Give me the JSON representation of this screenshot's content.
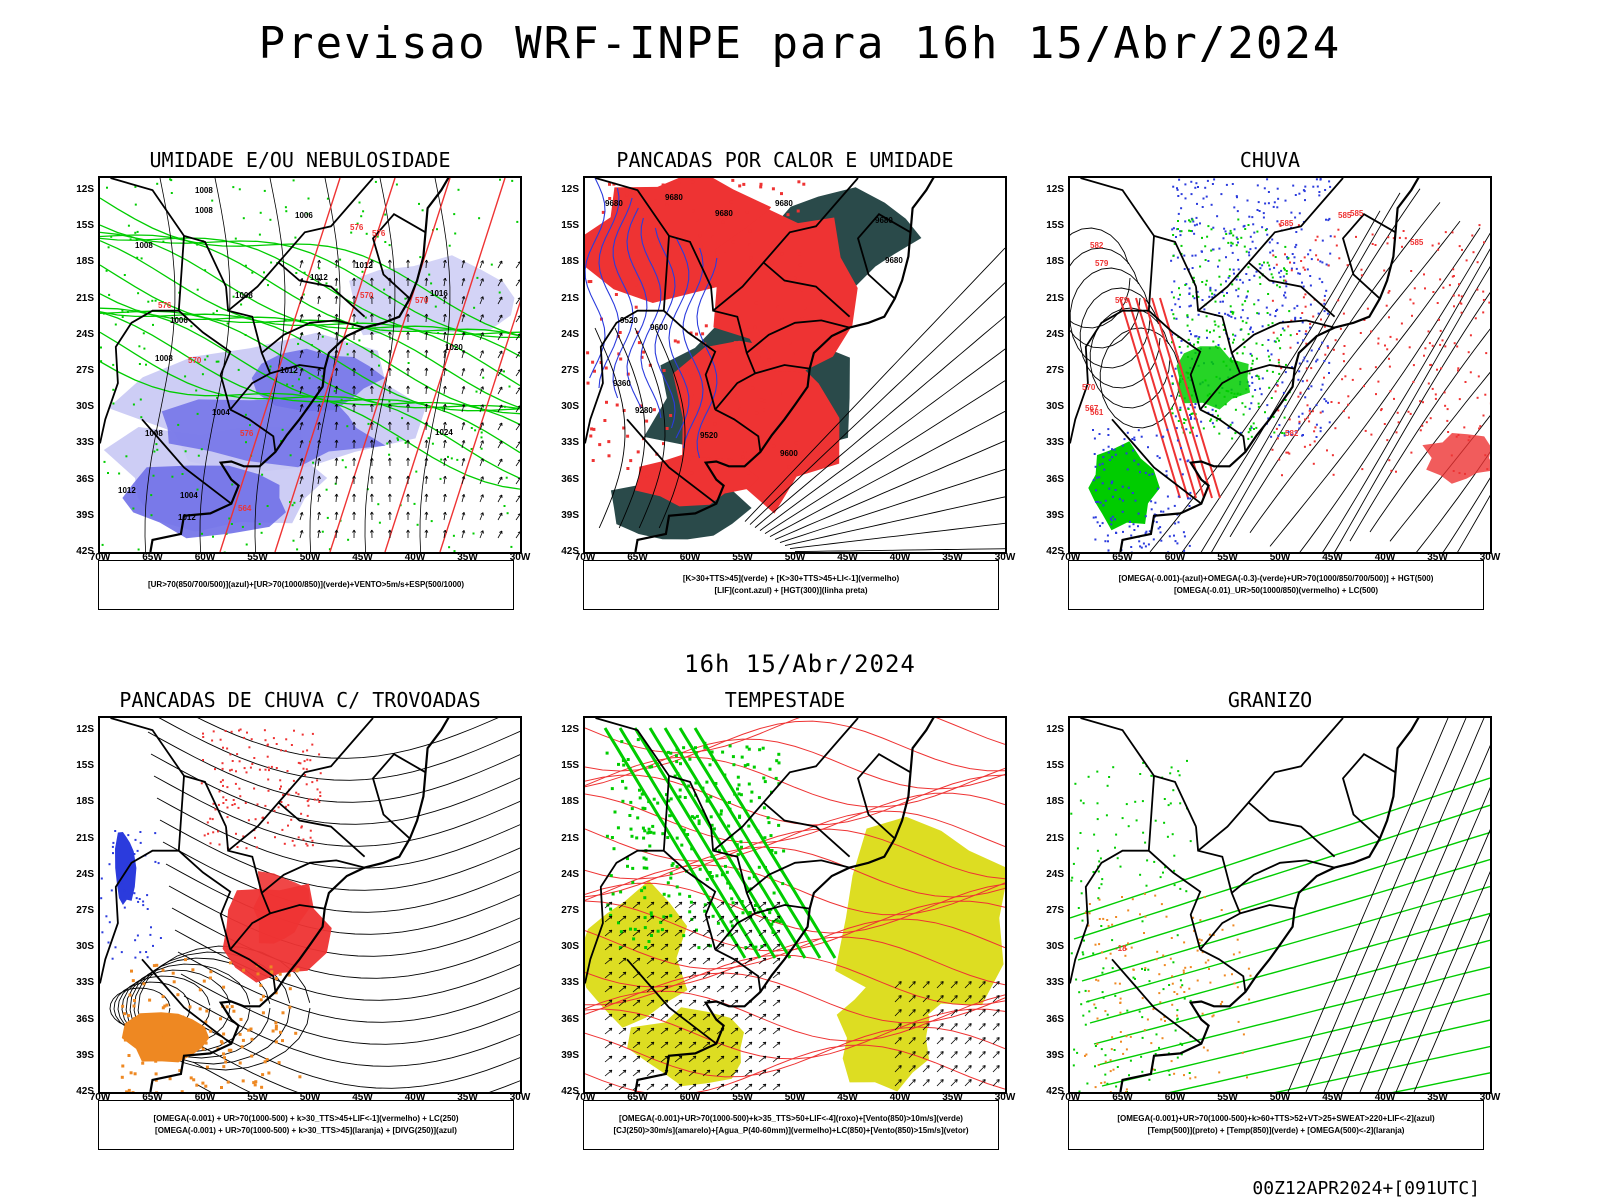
{
  "title": "Previsao WRF-INPE  para 16h 15/Abr/2024",
  "mid_title": "16h 15/Abr/2024",
  "footer": "00Z12APR2024+[091UTC]",
  "axes": {
    "lat_labels": [
      "12S",
      "15S",
      "18S",
      "21S",
      "24S",
      "27S",
      "30S",
      "33S",
      "36S",
      "39S",
      "42S"
    ],
    "lon_labels": [
      "70W",
      "65W",
      "60W",
      "55W",
      "50W",
      "45W",
      "40W",
      "35W",
      "30W"
    ]
  },
  "colors": {
    "blue_shade": "#7070e8",
    "light_blue_shade": "#c8c8f4",
    "green": "#00cc00",
    "red": "#ee3333",
    "dark_teal": "#2a4a4a",
    "orange": "#ee8822",
    "yellow": "#dddd22"
  },
  "panels": [
    {
      "title": "UMIDADE E/OU NEBULOSIDADE",
      "legend": [
        "[UR>70(850/700/500)](azul)+[UR>70(1000/850)](verde)+VENTO>5m/s+ESP(500/1000)"
      ],
      "contour_labels": [
        "1008",
        "1008",
        "1006",
        "1008",
        "1012",
        "1012",
        "1016",
        "1008",
        "1006",
        "1008",
        "1012",
        "1004",
        "1008",
        "1012",
        "1020",
        "1024",
        "1004",
        "1012",
        "576",
        "570",
        "576",
        "570",
        "576",
        "570",
        "576",
        "564"
      ]
    },
    {
      "title": "PANCADAS POR CALOR E UMIDADE",
      "legend": [
        "[K>30+TTS>45](verde) + [K>30+TTS>45+LI<-1](vermelho)",
        "[LIF](cont.azul) + [HGT(300)](linha preta)"
      ],
      "contour_labels": [
        "9680",
        "9680",
        "9680",
        "9680",
        "9680",
        "9680",
        "9520",
        "9600",
        "9360",
        "9280",
        "9520",
        "9600"
      ]
    },
    {
      "title": "CHUVA",
      "legend": [
        "[OMEGA(-0.001)-(azul)+OMEGA(-0.3)-(verde)+UR>70(1000/850/700/500)] + HGT(500)",
        "[OMEGA(-0.01)_UR>50(1000/850)(vermelho) + LC(500)"
      ],
      "contour_labels": [
        "585",
        "585",
        "585",
        "585",
        "582",
        "579",
        "570",
        "567",
        "561",
        "582",
        "579"
      ]
    },
    {
      "title": "PANCADAS DE CHUVA C/ TROVOADAS",
      "legend": [
        "[OMEGA(-0.001) + UR>70(1000-500) + k>30_TTS>45+LIF<-1](vermelho) + LC(250)",
        "[OMEGA(-0.001) + UR>70(1000-500) + k>30_TTS>45](laranja) + [DIVG(250)](azul)"
      ],
      "contour_labels": []
    },
    {
      "title": "TEMPESTADE",
      "legend": [
        "[OMEGA(-0.001)+UR>70(1000-500)+k>35_TTS>50+LIF<-4](roxo)+[Vento(850)>10m/s](verde)",
        "[CJ(250)>30m/s](amarelo)+[Agua_P(40-60mm)](vermelho)+LC(850)+[Vento(850)>15m/s](vetor)"
      ],
      "contour_labels": []
    },
    {
      "title": "GRANIZO",
      "legend": [
        "[OMEGA(-0.001)+UR>70(1000-500)+k>60+TTS>52+VT>25+SWEAT>220+LIF<-2](azul)",
        "[Temp(500)](preto) + [Temp(850)](verde) + [OMEGA(500)<-2](laranja)"
      ],
      "contour_labels": [
        "-18"
      ]
    }
  ]
}
